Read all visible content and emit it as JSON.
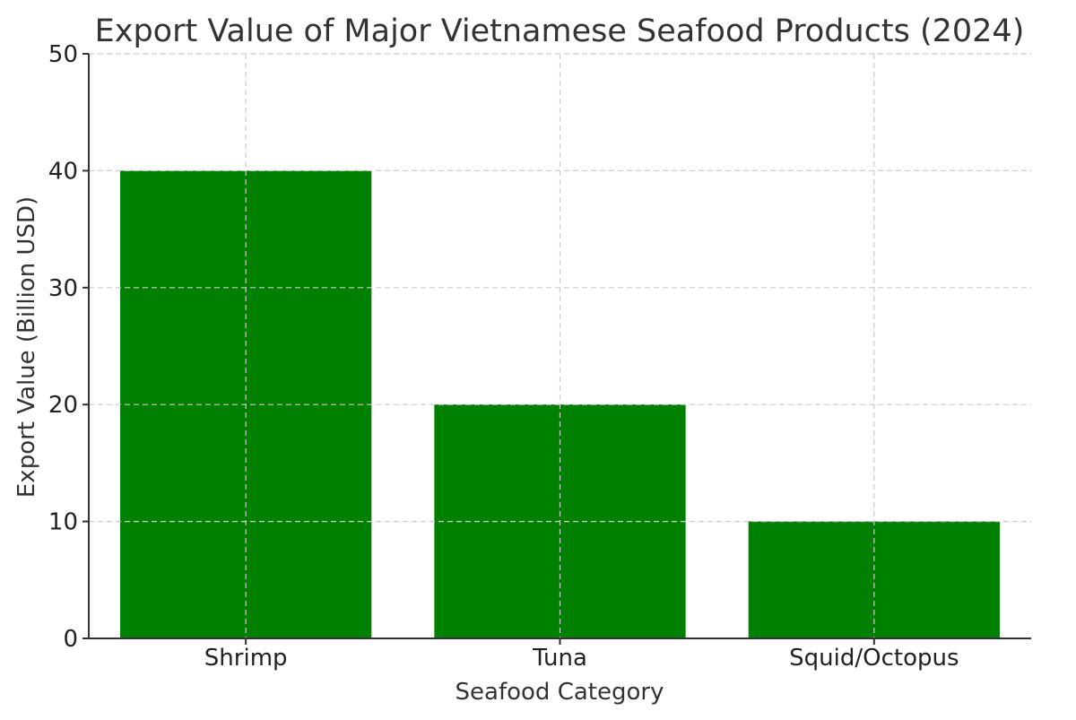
{
  "chart_data": {
    "type": "bar",
    "title": "Export Value of Major Vietnamese Seafood Products (2024)",
    "xlabel": "Seafood Category",
    "ylabel": "Export Value (Billion USD)",
    "categories": [
      "Shrimp",
      "Tuna",
      "Squid/Octopus"
    ],
    "values": [
      40,
      20,
      10
    ],
    "ylim": [
      0,
      50
    ],
    "yticks": [
      0,
      10,
      20,
      30,
      40,
      50
    ],
    "grid": true,
    "bar_color": "#008000"
  }
}
